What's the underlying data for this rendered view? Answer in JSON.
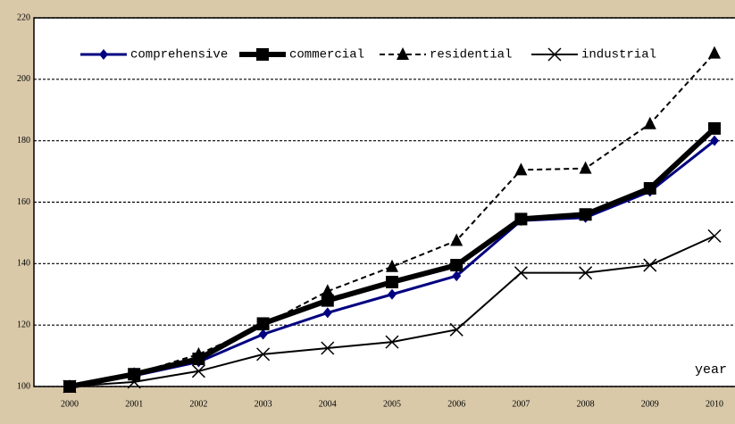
{
  "chart_data": {
    "type": "line",
    "x_label": "year",
    "categories": [
      "2000",
      "2001",
      "2002",
      "2003",
      "2004",
      "2005",
      "2006",
      "2007",
      "2008",
      "2009",
      "2010"
    ],
    "series": [
      {
        "name": "comprehensive",
        "color": "#000080",
        "marker": "diamond",
        "dash": "solid",
        "line_width": 3,
        "values": [
          100,
          103.5,
          108,
          117,
          124,
          130,
          136,
          154,
          155,
          163.5,
          180
        ]
      },
      {
        "name": "commercial",
        "color": "#000000",
        "marker": "square",
        "dash": "solid",
        "line_width": 6,
        "values": [
          100,
          104,
          109,
          120.5,
          128,
          134,
          139.5,
          154.5,
          156,
          164.5,
          184
        ]
      },
      {
        "name": "residential",
        "color": "#000000",
        "marker": "triangle",
        "dash": "dashed",
        "line_width": 2,
        "values": [
          100,
          104,
          110.5,
          120,
          131,
          139,
          147.5,
          170.5,
          171,
          185.5,
          208.5
        ]
      },
      {
        "name": "industrial",
        "color": "#000000",
        "marker": "x",
        "dash": "solid",
        "line_width": 2,
        "values": [
          100,
          101.5,
          105,
          110.5,
          112.5,
          114.5,
          118.5,
          137,
          137,
          139.5,
          149
        ]
      }
    ],
    "ylim": [
      100,
      220
    ],
    "yticks": [
      100,
      120,
      140,
      160,
      180,
      200,
      220
    ],
    "grid": true
  }
}
